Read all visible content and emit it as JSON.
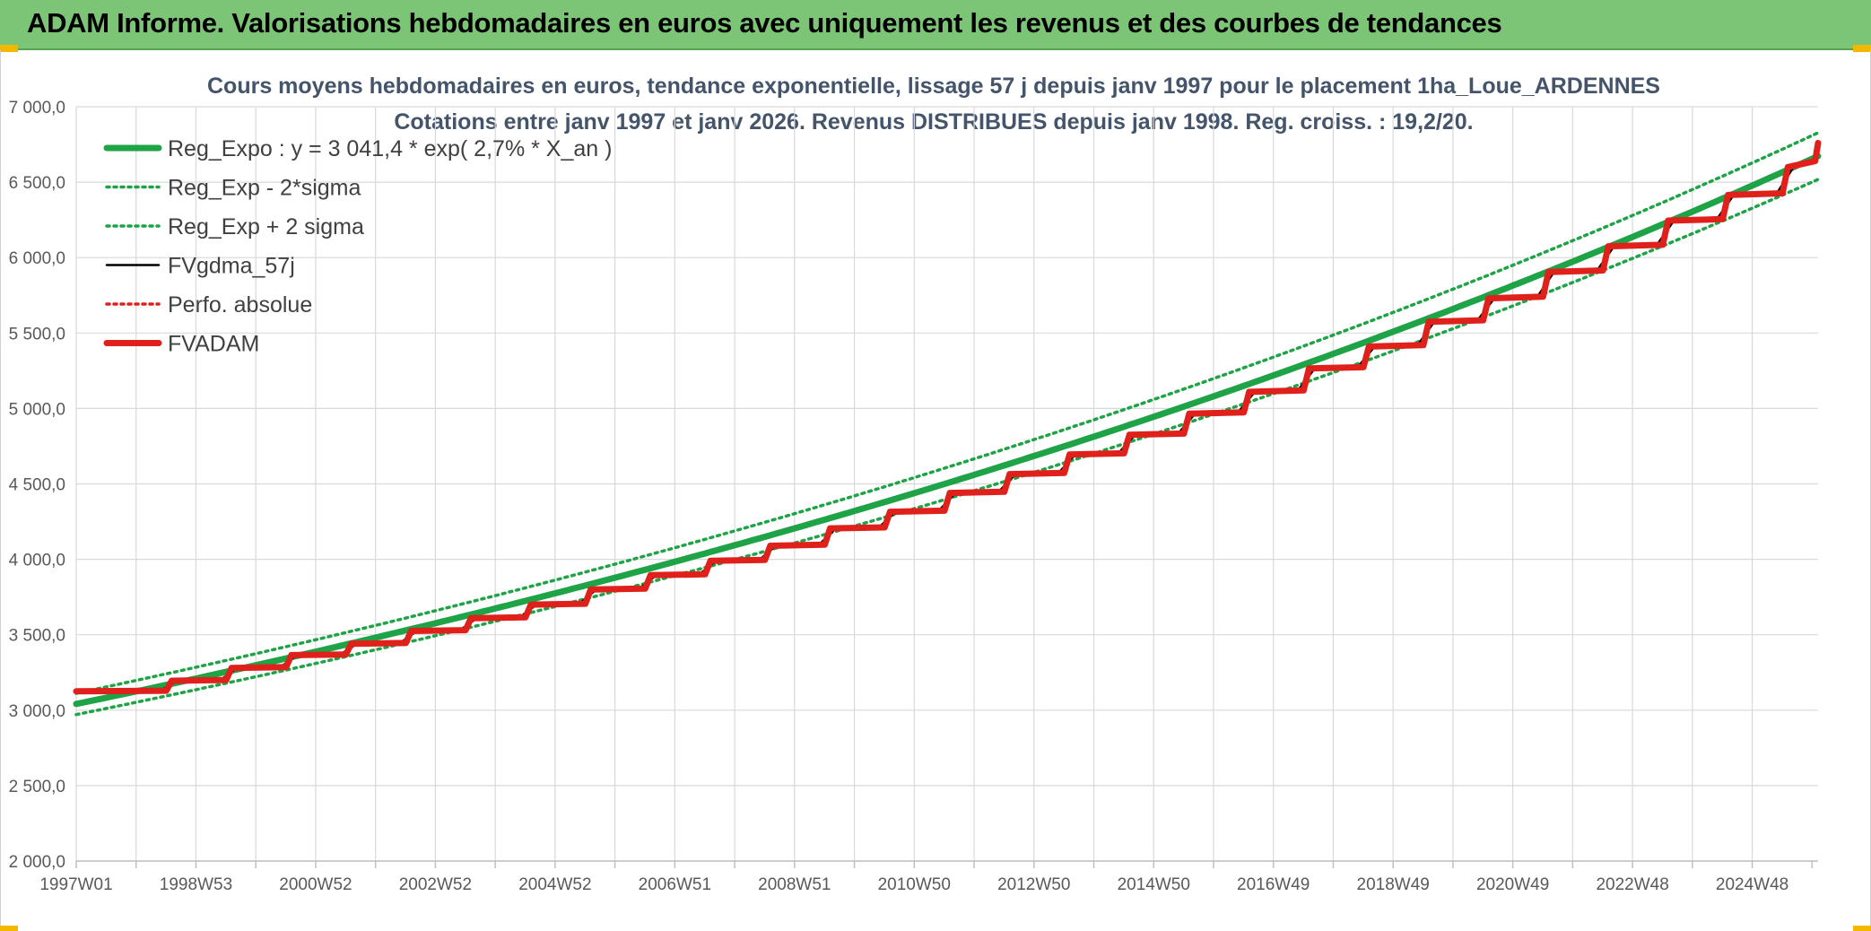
{
  "banner": {
    "title": "ADAM Informe. Valorisations hebdomadaires en euros avec uniquement les revenus et des courbes de tendances"
  },
  "chart_data": {
    "type": "line",
    "title": "Cours moyens hebdomadaires en euros, tendance exponentielle, lissage 57 j depuis janv 1997 pour le placement 1ha_Loue_ARDENNES",
    "subtitle": "Cotations entre janv 1997 et janv 2026. Revenus DISTRIBUES depuis janv 1998. Reg. croiss. : 19,2/20.",
    "xlabel": "",
    "ylabel": "",
    "ylim": [
      2000,
      7000
    ],
    "yticks": [
      "2 000,0",
      "2 500,0",
      "3 000,0",
      "3 500,0",
      "4 000,0",
      "4 500,0",
      "5 000,0",
      "5 500,0",
      "6 000,0",
      "6 500,0",
      "7 000,0"
    ],
    "xticks": [
      "1997W01",
      "1998W53",
      "2000W52",
      "2002W52",
      "2004W52",
      "2006W51",
      "2008W51",
      "2010W50",
      "2012W50",
      "2014W50",
      "2016W49",
      "2018W49",
      "2020W49",
      "2022W48",
      "2024W48"
    ],
    "x_range_years": [
      1997.0,
      2026.1
    ],
    "grid": true,
    "legend_position": "top-left",
    "series": [
      {
        "name": "Reg_Expo : y = 3 041,4 * exp( 2,7% *  X_an )",
        "color": "#1fa347",
        "style": "solid-thick",
        "formula": {
          "a": 3041.4,
          "rate": 0.027
        }
      },
      {
        "name": "Reg_Exp - 2*sigma",
        "color": "#1fa347",
        "style": "dotted",
        "formula": {
          "a": 2971.0,
          "rate": 0.027
        }
      },
      {
        "name": "Reg_Exp + 2 sigma",
        "color": "#1fa347",
        "style": "dotted",
        "formula": {
          "a": 3112.0,
          "rate": 0.027
        }
      },
      {
        "name": "FVgdma_57j",
        "color": "#000000",
        "style": "solid",
        "step_years": [
          1997,
          1998,
          1999,
          2000,
          2001,
          2002,
          2003,
          2004,
          2005,
          2006,
          2007,
          2008,
          2009,
          2010,
          2011,
          2012,
          2013,
          2014,
          2015,
          2016,
          2017,
          2018,
          2019,
          2020,
          2021,
          2022,
          2023,
          2024,
          2025
        ],
        "step_values": [
          3125,
          3195,
          3280,
          3365,
          3440,
          3525,
          3610,
          3700,
          3800,
          3895,
          3990,
          4090,
          4205,
          4315,
          4440,
          4565,
          4695,
          4825,
          4965,
          5110,
          5265,
          5410,
          5575,
          5730,
          5905,
          6075,
          6245,
          6415,
          6600
        ],
        "end_value": 6760
      },
      {
        "name": "Perfo. absolue",
        "color": "#e0201b",
        "style": "dotted",
        "same_as": "FVADAM"
      },
      {
        "name": "FVADAM",
        "color": "#e0201b",
        "style": "solid-thick",
        "step_years": [
          1997,
          1998,
          1999,
          2000,
          2001,
          2002,
          2003,
          2004,
          2005,
          2006,
          2007,
          2008,
          2009,
          2010,
          2011,
          2012,
          2013,
          2014,
          2015,
          2016,
          2017,
          2018,
          2019,
          2020,
          2021,
          2022,
          2023,
          2024,
          2025
        ],
        "step_values": [
          3125,
          3195,
          3280,
          3365,
          3440,
          3525,
          3610,
          3700,
          3800,
          3895,
          3990,
          4090,
          4205,
          4315,
          4440,
          4565,
          4695,
          4825,
          4965,
          5110,
          5265,
          5410,
          5575,
          5730,
          5905,
          6075,
          6245,
          6415,
          6600
        ],
        "end_value": 6760
      }
    ]
  }
}
